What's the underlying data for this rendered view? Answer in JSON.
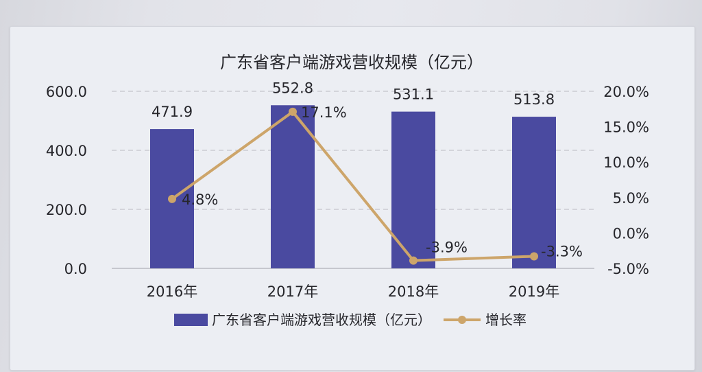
{
  "chart_data": {
    "type": "bar",
    "title": "广东省客户端游戏营收规模（亿元）",
    "categories": [
      "2016年",
      "2017年",
      "2018年",
      "2019年"
    ],
    "series": [
      {
        "name": "广东省客户端游戏营收规模（亿元）",
        "type": "bar",
        "axis": "left",
        "color": "#4a4aa0",
        "values": [
          471.9,
          552.8,
          531.1,
          513.8
        ],
        "labels": [
          "471.9",
          "552.8",
          "531.1",
          "513.8"
        ]
      },
      {
        "name": "增长率",
        "type": "line",
        "axis": "right",
        "color": "#cda56a",
        "values": [
          4.8,
          17.1,
          -3.9,
          -3.3
        ],
        "labels": [
          "4.8%",
          "17.1%",
          "-3.9%",
          "-3.3%"
        ]
      }
    ],
    "y_left": {
      "lim": [
        0,
        600
      ],
      "ticks": [
        0,
        200,
        400,
        600
      ],
      "tick_labels": [
        "0.0",
        "200.0",
        "400.0",
        "600.0"
      ]
    },
    "y_right": {
      "lim": [
        -5,
        20
      ],
      "ticks": [
        -5,
        0,
        5,
        10,
        15,
        20
      ],
      "tick_labels": [
        "-5.0%",
        "0.0%",
        "5.0%",
        "10.0%",
        "15.0%",
        "20.0%"
      ]
    },
    "grid": true,
    "legend_position": "bottom"
  }
}
